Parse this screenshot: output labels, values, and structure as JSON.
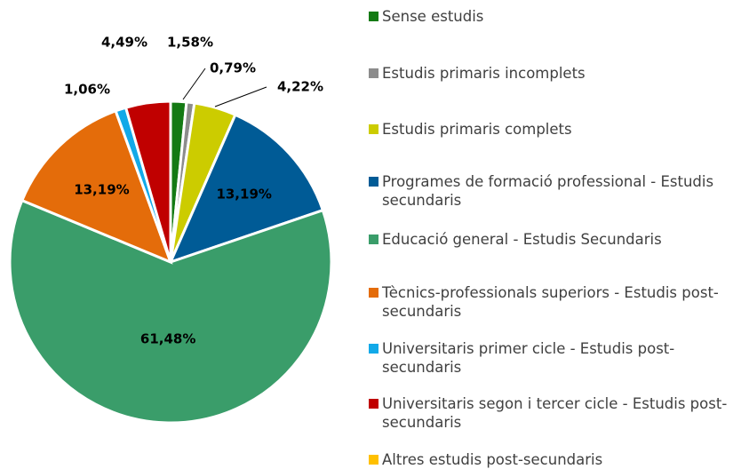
{
  "chart_data": {
    "type": "pie",
    "categories": [
      "Sense estudis",
      "Estudis primaris incomplets",
      "Estudis primaris complets",
      "Programes de formació professional - Estudis secundaris",
      "Educació general - Estudis Secundaris",
      "Tècnics-professionals superiors - Estudis post-secundaris",
      "Universitaris primer cicle - Estudis post-secundaris",
      "Universitaris segon i tercer cicle - Estudis post-secundaris",
      "Altres estudis post-secundaris"
    ],
    "values": [
      1.58,
      0.79,
      4.22,
      13.19,
      61.48,
      13.19,
      1.06,
      4.49,
      0
    ],
    "value_labels": [
      "1,58%",
      "0,79%",
      "4,22%",
      "13,19%",
      "61,48%",
      "13,19%",
      "1,06%",
      "4,49%",
      null
    ],
    "colors": [
      "#147a14",
      "#8c8c8c",
      "#cccc00",
      "#005b96",
      "#3a9d6a",
      "#e46c0a",
      "#12a9e8",
      "#c00000",
      "#ffc000"
    ]
  }
}
